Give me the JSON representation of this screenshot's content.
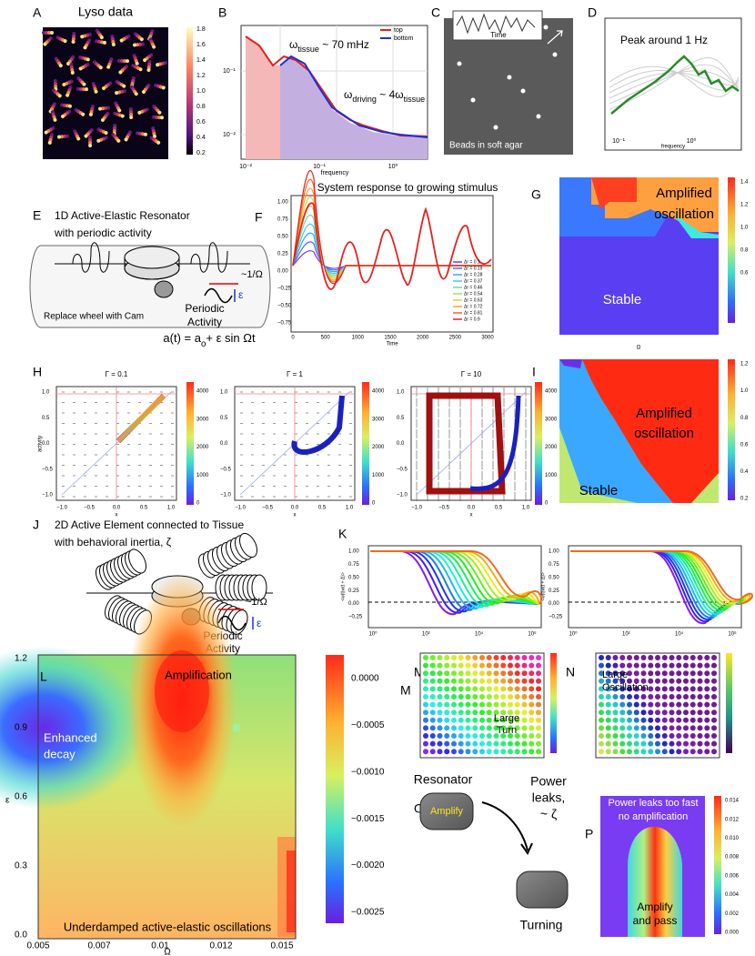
{
  "A": {
    "label": "A",
    "title": "Lyso data",
    "colorbar": [
      "1.8",
      "1.6",
      "1.4",
      "1.2",
      "1.0",
      "0.8",
      "0.6",
      "0.4",
      "0.2"
    ]
  },
  "B": {
    "label": "B",
    "legend": [
      "top",
      "bottom"
    ],
    "ann1": {
      "sym": "ω",
      "sub": "tissue",
      "rest": " ~ 70 mHz"
    },
    "ann2": {
      "sym": "ω",
      "sub": "driving",
      "rest": " ~ 4ω",
      "sub2": "tissue"
    },
    "xlabel": "frequency",
    "xticks": [
      "10⁻²",
      "10⁻¹",
      "10⁰"
    ],
    "yticks": [
      "10⁻¹",
      "10⁻²"
    ]
  },
  "C": {
    "label": "C",
    "inset": "Time",
    "caption": "Beads in soft agar"
  },
  "D": {
    "label": "D",
    "annotation": "Peak around 1 Hz",
    "xlabel": "frequency",
    "xticks": [
      "10⁻¹",
      "10⁰"
    ]
  },
  "E": {
    "label": "E",
    "title": [
      "1D Active-Elastic Resonator",
      "with periodic activity"
    ],
    "period": "~1/Ω",
    "eps": "ε",
    "activity": [
      "Periodic",
      "Activity"
    ],
    "caption": "Replace wheel with Cam",
    "formula": {
      "pre": "a(t) = a",
      "sub": "o",
      "post": "+ ε sin Ωt"
    }
  },
  "F": {
    "label": "F",
    "title": "System response to growing stimulus",
    "xlabel": "Time",
    "xticks": [
      "0",
      "500",
      "1000",
      "1500",
      "2000",
      "2500",
      "3000"
    ],
    "yticks": [
      "1.00",
      "0.75",
      "0.50",
      "0.25",
      "0.00",
      "−0.25",
      "−0.50",
      "−0.75"
    ],
    "legend": [
      "Δr = 0.1",
      "Δr = 0.19",
      "Δr = 0.28",
      "Δr = 0.37",
      "Δr = 0.46",
      "Δr = 0.54",
      "Δr = 0.63",
      "Δr = 0.72",
      "Δr = 0.81",
      "Δr = 0.9"
    ]
  },
  "G": {
    "label": "G",
    "regions": [
      "Amplified",
      "oscillation",
      "Stable"
    ],
    "xlabel": "Ω",
    "colorbar": [
      "1.4",
      "1.2",
      "1.0",
      "0.8",
      "0.6"
    ]
  },
  "H": {
    "label": "H",
    "titles": [
      "Γ = 0.1",
      "Γ = 1",
      "Γ = 10"
    ],
    "xticks": [
      "−1.0",
      "−0.5",
      "0.0",
      "0.5",
      "1.0"
    ],
    "yticks": [
      "1.0",
      "0.5",
      "0.0",
      "−0.5",
      "−1.0"
    ],
    "ylabel": "activity",
    "xlabel": "x",
    "colorbar": [
      "4000",
      "3000",
      "2000",
      "1000",
      "0"
    ]
  },
  "I": {
    "label": "I",
    "regions": [
      "Amplified",
      "oscillation",
      "Stable"
    ],
    "colorbar": [
      "1.2",
      "1.0",
      "0.8",
      "0.6",
      "0.4",
      "0.2"
    ]
  },
  "J": {
    "label": "J",
    "title": [
      "2D Active Element connected to Tissue",
      "with behavioral inertia, ζ"
    ],
    "period": "~1/Ω",
    "eps": "ε",
    "activity": [
      "Periodic",
      "Activity"
    ]
  },
  "K": {
    "label": "K",
    "ylabel": "<w(t)w(t + Δ)>",
    "yticks": [
      "1.00",
      "0.75",
      "0.50",
      "0.25",
      "0.00",
      "−0.25"
    ],
    "xticks": [
      "10⁰",
      "10²",
      "10⁴",
      "10⁶"
    ]
  },
  "L": {
    "label": "L",
    "regions": {
      "top": "Amplification",
      "left": [
        "Enhanced",
        "decay"
      ],
      "bottom": "Underdamped active-elastic oscillations"
    },
    "xlabel": "Ω",
    "ylabel": "ε",
    "xticks": [
      "0.005",
      "0.007",
      "0.01",
      "0.012",
      "0.015"
    ],
    "yticks": [
      "1.2",
      "0.9",
      "0.6",
      "0.3",
      "0.0"
    ],
    "colorbar": [
      "0.0000",
      "−0.0005",
      "−0.0010",
      "−0.0015",
      "−0.0020",
      "−0.0025"
    ]
  },
  "M": {
    "label": "M",
    "extra_label": "M",
    "region": [
      "Large",
      "Turn"
    ]
  },
  "N": {
    "label": "N",
    "region": [
      "Large",
      "Oscillation"
    ]
  },
  "O": {
    "label": "O",
    "resonator": "Resonator",
    "amplify": "Amplify",
    "arrow": [
      "Power",
      "leaks,",
      "~ ζ"
    ],
    "turning": "Turning"
  },
  "P": {
    "label": "P",
    "top": [
      "Power leaks too fast",
      "no amplification"
    ],
    "center": [
      "Amplify",
      "and pass"
    ],
    "colorbar": [
      "0.014",
      "0.012",
      "0.010",
      "0.008",
      "0.006",
      "0.004",
      "0.002",
      "0.000"
    ]
  }
}
